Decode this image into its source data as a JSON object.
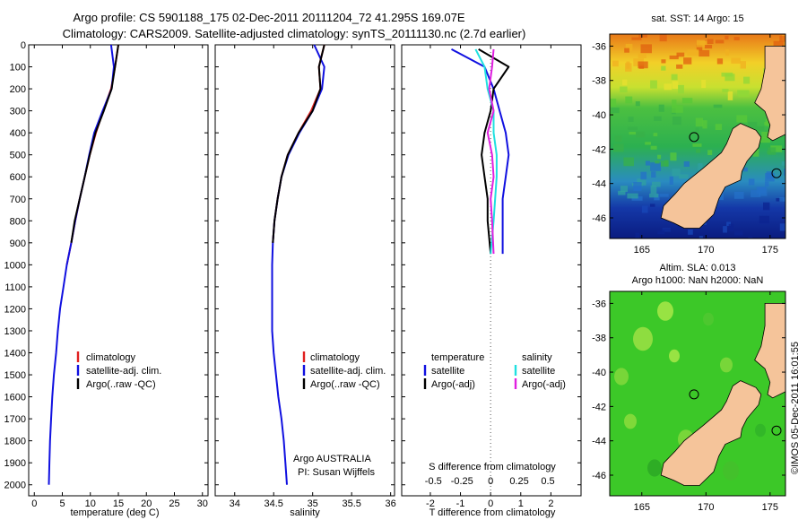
{
  "header": {
    "title_line1": "Argo profile: CS 5901188_175 02-Dec-2011 20111204_72 41.295S 169.07E",
    "title_line2": "Climatology: CARS2009. Satellite-adjusted climatology: synTS_20111130.nc (2.7d earlier)"
  },
  "colors": {
    "climatology": "#e02020",
    "satellite": "#1010e0",
    "argo": "#000000",
    "satellite_salinity": "#20e0e0",
    "argo_salinity": "#e020e0",
    "land": "#f5c49a"
  },
  "chart_data": [
    {
      "name": "temperature-profile",
      "type": "line",
      "xlabel": "temperature (deg C)",
      "ylim": [
        0,
        2050
      ],
      "xlim": [
        -1,
        31
      ],
      "xticks": [
        0,
        5,
        10,
        15,
        20,
        25,
        30
      ],
      "yticks": [
        0,
        100,
        200,
        300,
        400,
        500,
        600,
        700,
        800,
        900,
        1000,
        1100,
        1200,
        1300,
        1400,
        1500,
        1600,
        1700,
        1800,
        1900,
        2000
      ],
      "y_reversed": true,
      "legend": [
        "climatology",
        "satellite-adj. clim.",
        "Argo(..raw -QC)"
      ],
      "legend_position": "lower-right",
      "series": [
        {
          "name": "climatology",
          "x": [
            15.0,
            14.4,
            13.7,
            12.3,
            11.0,
            9.9,
            9.0,
            8.1,
            7.3,
            6.6,
            5.8
          ],
          "y": [
            0,
            100,
            200,
            300,
            400,
            500,
            600,
            700,
            800,
            900,
            1000
          ]
        },
        {
          "name": "satellite-adj. clim.",
          "x": [
            13.7,
            14.2,
            13.8,
            12.2,
            10.7,
            9.8,
            9.0,
            8.1,
            7.3,
            6.6,
            5.8,
            5.2,
            4.6,
            4.2,
            3.9,
            3.5,
            3.2,
            3.0,
            2.8,
            2.7,
            2.6
          ],
          "y": [
            0,
            100,
            200,
            300,
            400,
            500,
            600,
            700,
            800,
            900,
            1000,
            1100,
            1200,
            1300,
            1400,
            1500,
            1600,
            1700,
            1800,
            1900,
            2000
          ]
        },
        {
          "name": "Argo(..raw -QC)",
          "x": [
            15.0,
            14.4,
            13.8,
            12.4,
            10.9,
            9.9,
            9.0,
            8.1,
            7.2,
            6.6
          ],
          "y": [
            0,
            100,
            200,
            300,
            400,
            500,
            600,
            700,
            800,
            900
          ]
        }
      ]
    },
    {
      "name": "salinity-profile",
      "type": "line",
      "xlabel": "salinity",
      "ylim": [
        0,
        2050
      ],
      "xlim": [
        33.75,
        36.05
      ],
      "xticks": [
        34,
        34.5,
        35,
        35.5,
        36
      ],
      "x_ticklabels": [
        "34",
        "34.5",
        "35",
        "35.5",
        "36"
      ],
      "y_reversed": true,
      "legend": [
        "climatology",
        "satellite-adj. clim.",
        "Argo(..raw -QC)"
      ],
      "legend_position": "lower-right",
      "annotation": [
        "Argo AUSTRALIA",
        "PI: Susan Wijffels"
      ],
      "series": [
        {
          "name": "climatology",
          "x": [
            35.15,
            35.08,
            35.1,
            34.98,
            34.82,
            34.68,
            34.6,
            34.55,
            34.51,
            34.49
          ],
          "y": [
            0,
            100,
            200,
            300,
            400,
            500,
            600,
            700,
            800,
            900
          ]
        },
        {
          "name": "satellite-adj. clim.",
          "x": [
            35.02,
            35.15,
            35.12,
            35.0,
            34.83,
            34.69,
            34.6,
            34.55,
            34.51,
            34.49,
            34.48,
            34.48,
            34.48,
            34.48,
            34.5,
            34.53,
            34.56,
            34.6,
            34.63,
            34.65,
            34.67
          ],
          "y": [
            0,
            100,
            200,
            300,
            400,
            500,
            600,
            700,
            800,
            900,
            1000,
            1100,
            1200,
            1300,
            1400,
            1500,
            1600,
            1700,
            1800,
            1900,
            2000
          ]
        },
        {
          "name": "Argo(..raw -QC)",
          "x": [
            35.15,
            35.08,
            35.1,
            35.0,
            34.82,
            34.68,
            34.6,
            34.55,
            34.51,
            34.49
          ],
          "y": [
            0,
            100,
            200,
            300,
            400,
            500,
            600,
            700,
            800,
            900
          ]
        }
      ]
    },
    {
      "name": "difference-profile",
      "type": "line",
      "xlabel": "T difference from climatology",
      "xlabel_top": "S difference from climatology",
      "ylim": [
        0,
        2050
      ],
      "xlim": [
        -2.95,
        3.0
      ],
      "xticks": [
        -2,
        -1,
        0,
        1,
        2
      ],
      "s_ticks": [
        {
          "label": "-0.5",
          "x": -1.9
        },
        {
          "label": "-0.25",
          "x": -0.95
        },
        {
          "label": "0",
          "x": 0
        },
        {
          "label": "0.25",
          "x": 0.95
        },
        {
          "label": "0.5",
          "x": 1.9
        }
      ],
      "y_reversed": true,
      "zero_line": "dotted",
      "legend_titles": [
        "temperature",
        "salinity"
      ],
      "legend": [
        "satellite",
        "Argo(-adj)",
        "satellite",
        "Argo(-adj)"
      ],
      "series": [
        {
          "name": "temperature satellite",
          "x": [
            -1.3,
            -0.2,
            0.1,
            0.3,
            0.5,
            0.6,
            0.5,
            0.4,
            0.4,
            0.4
          ],
          "y": [
            20,
            100,
            200,
            300,
            400,
            500,
            600,
            700,
            800,
            950
          ]
        },
        {
          "name": "temperature Argo(-adj)",
          "x": [
            -0.4,
            0.6,
            0.1,
            0.0,
            -0.2,
            -0.3,
            -0.2,
            -0.1,
            -0.1,
            0.0
          ],
          "y": [
            20,
            100,
            200,
            300,
            400,
            500,
            600,
            700,
            800,
            950
          ]
        },
        {
          "name": "salinity satellite",
          "x": [
            -0.5,
            -0.2,
            -0.1,
            0.1,
            0.1,
            0.2,
            0.2,
            0.15,
            0.1,
            0.0
          ],
          "y": [
            20,
            100,
            200,
            300,
            400,
            500,
            600,
            700,
            800,
            950
          ]
        },
        {
          "name": "salinity Argo(-adj)",
          "x": [
            0.1,
            0.05,
            -0.05,
            0.1,
            -0.1,
            0.05,
            0.1,
            0.0,
            0.05,
            0.1
          ],
          "y": [
            20,
            100,
            200,
            300,
            400,
            500,
            600,
            700,
            800,
            950
          ]
        }
      ]
    },
    {
      "name": "sst-map",
      "type": "heatmap",
      "title": "sat. SST: 14 Argo: 15",
      "xticks": [
        165,
        170,
        175
      ],
      "yticks": [
        -36,
        -38,
        -40,
        -42,
        -44,
        -46
      ],
      "xlim": [
        162.5,
        176.2
      ],
      "ylim": [
        -47.2,
        -35.3
      ]
    },
    {
      "name": "sla-map",
      "type": "heatmap",
      "title_line1": "Altim. SLA: 0.013",
      "title_line2": "Argo h1000: NaN h2000: NaN",
      "xticks": [
        165,
        170,
        175
      ],
      "yticks": [
        -36,
        -38,
        -40,
        -42,
        -44,
        -46
      ],
      "xlim": [
        162.5,
        176.2
      ],
      "ylim": [
        -47.2,
        -35.3
      ]
    }
  ],
  "watermark": "©IMOS 05-Dec-2011 16:01:55"
}
